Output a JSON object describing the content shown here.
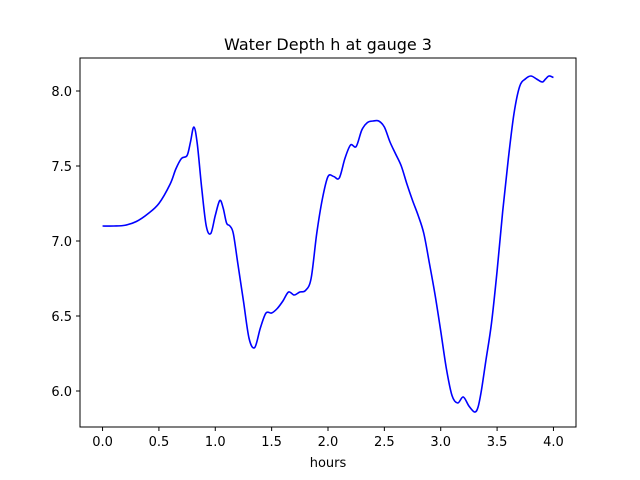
{
  "chart_data": {
    "type": "line",
    "title": "Water Depth h at gauge 3",
    "xlabel": "hours",
    "ylabel": "",
    "xlim": [
      -0.2,
      4.2
    ],
    "ylim": [
      5.76,
      8.22
    ],
    "grid": false,
    "x_ticks": [
      {
        "value": 0.0,
        "label": "0.0"
      },
      {
        "value": 0.5,
        "label": "0.5"
      },
      {
        "value": 1.0,
        "label": "1.0"
      },
      {
        "value": 1.5,
        "label": "1.5"
      },
      {
        "value": 2.0,
        "label": "2.0"
      },
      {
        "value": 2.5,
        "label": "2.5"
      },
      {
        "value": 3.0,
        "label": "3.0"
      },
      {
        "value": 3.5,
        "label": "3.5"
      },
      {
        "value": 4.0,
        "label": "4.0"
      }
    ],
    "y_ticks": [
      {
        "value": 6.0,
        "label": "6.0"
      },
      {
        "value": 6.5,
        "label": "6.5"
      },
      {
        "value": 7.0,
        "label": "7.0"
      },
      {
        "value": 7.5,
        "label": "7.5"
      },
      {
        "value": 8.0,
        "label": "8.0"
      }
    ],
    "series": [
      {
        "color": "#0000ff",
        "x": [
          0.0,
          0.1,
          0.2,
          0.3,
          0.4,
          0.5,
          0.6,
          0.65,
          0.7,
          0.75,
          0.78,
          0.81,
          0.84,
          0.88,
          0.92,
          0.96,
          1.0,
          1.04,
          1.07,
          1.1,
          1.13,
          1.16,
          1.2,
          1.25,
          1.3,
          1.35,
          1.4,
          1.45,
          1.5,
          1.55,
          1.6,
          1.65,
          1.7,
          1.75,
          1.8,
          1.85,
          1.9,
          1.95,
          2.0,
          2.05,
          2.1,
          2.15,
          2.2,
          2.25,
          2.3,
          2.35,
          2.4,
          2.45,
          2.5,
          2.55,
          2.6,
          2.65,
          2.7,
          2.75,
          2.8,
          2.85,
          2.9,
          2.95,
          3.0,
          3.05,
          3.1,
          3.15,
          3.2,
          3.25,
          3.3,
          3.33,
          3.36,
          3.4,
          3.45,
          3.5,
          3.55,
          3.6,
          3.65,
          3.7,
          3.75,
          3.8,
          3.85,
          3.9,
          3.93,
          3.96,
          4.0
        ],
        "y": [
          7.1,
          7.1,
          7.105,
          7.13,
          7.18,
          7.25,
          7.38,
          7.48,
          7.55,
          7.57,
          7.66,
          7.76,
          7.65,
          7.35,
          7.1,
          7.05,
          7.17,
          7.27,
          7.22,
          7.12,
          7.1,
          7.05,
          6.85,
          6.6,
          6.35,
          6.29,
          6.42,
          6.52,
          6.52,
          6.55,
          6.6,
          6.66,
          6.64,
          6.66,
          6.67,
          6.75,
          7.05,
          7.28,
          7.43,
          7.43,
          7.42,
          7.55,
          7.64,
          7.63,
          7.74,
          7.79,
          7.8,
          7.8,
          7.76,
          7.66,
          7.58,
          7.5,
          7.38,
          7.27,
          7.17,
          7.05,
          6.85,
          6.64,
          6.4,
          6.15,
          5.97,
          5.92,
          5.96,
          5.9,
          5.86,
          5.89,
          6.0,
          6.2,
          6.45,
          6.8,
          7.2,
          7.55,
          7.85,
          8.03,
          8.08,
          8.1,
          8.08,
          8.06,
          8.08,
          8.1,
          8.09
        ]
      }
    ]
  }
}
